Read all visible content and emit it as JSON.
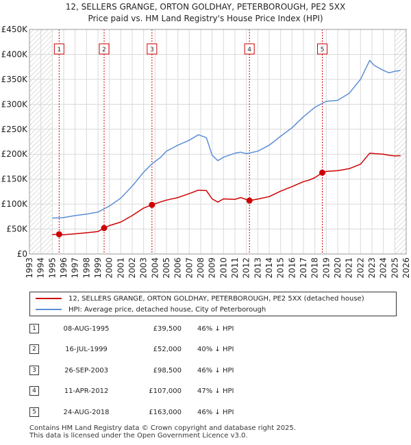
{
  "chart_data": {
    "type": "line",
    "title": "12, SELLERS GRANGE, ORTON GOLDHAY, PETERBOROUGH, PE2 5XX",
    "subtitle": "Price paid vs. HM Land Registry's House Price Index (HPI)",
    "xlabel": "",
    "ylabel": "",
    "xlim": [
      1993,
      2026
    ],
    "ylim": [
      0,
      450000
    ],
    "x_ticks": [
      1993,
      1994,
      1995,
      1996,
      1997,
      1998,
      1999,
      2000,
      2001,
      2002,
      2003,
      2004,
      2005,
      2006,
      2007,
      2008,
      2009,
      2010,
      2011,
      2012,
      2013,
      2014,
      2015,
      2016,
      2017,
      2018,
      2019,
      2020,
      2021,
      2022,
      2023,
      2024,
      2025,
      2026
    ],
    "y_ticks": [
      {
        "value": 0,
        "label": "£0"
      },
      {
        "value": 50000,
        "label": "£50K"
      },
      {
        "value": 100000,
        "label": "£100K"
      },
      {
        "value": 150000,
        "label": "£150K"
      },
      {
        "value": 200000,
        "label": "£200K"
      },
      {
        "value": 250000,
        "label": "£250K"
      },
      {
        "value": 300000,
        "label": "£300K"
      },
      {
        "value": 350000,
        "label": "£350K"
      },
      {
        "value": 400000,
        "label": "£400K"
      },
      {
        "value": 450000,
        "label": "£450K"
      }
    ],
    "hatched_ranges": [
      [
        1993,
        1995.0
      ],
      [
        2025.0,
        2026
      ]
    ],
    "grid": true,
    "series": [
      {
        "name": "12, SELLERS GRANGE, ORTON GOLDHAY, PETERBOROUGH, PE2 5XX (detached house)",
        "color": "#cc0000",
        "x": [
          1995.0,
          1995.6,
          1996.0,
          1997.0,
          1998.0,
          1999.0,
          1999.54,
          2000.0,
          2001.0,
          2002.0,
          2003.0,
          2003.73,
          2004.5,
          2005.0,
          2006.0,
          2007.0,
          2007.8,
          2008.5,
          2009.0,
          2009.5,
          2010.0,
          2011.0,
          2011.5,
          2012.27,
          2013.0,
          2014.0,
          2015.0,
          2016.0,
          2017.0,
          2017.5,
          2018.0,
          2018.65,
          2019.0,
          2020.0,
          2021.0,
          2022.0,
          2022.8,
          2023.3,
          2024.0,
          2024.5,
          2025.0,
          2025.5
        ],
        "values": [
          39000,
          39500,
          38500,
          40500,
          42500,
          45000,
          52000,
          57000,
          64000,
          77000,
          92000,
          98500,
          104500,
          108000,
          113000,
          121000,
          128000,
          127000,
          110500,
          104000,
          110500,
          109500,
          113000,
          107000,
          110000,
          115000,
          126000,
          135000,
          145000,
          148000,
          153000,
          163000,
          165500,
          167000,
          171000,
          180000,
          202000,
          201000,
          200000,
          198000,
          196500,
          197000
        ]
      },
      {
        "name": "HPI: Average price, detached house, City of Peterborough",
        "color": "#5b8ed6",
        "x": [
          1995.0,
          1995.5,
          1996.0,
          1997.0,
          1998.0,
          1999.0,
          2000.0,
          2001.0,
          2002.0,
          2003.0,
          2003.7,
          2004.5,
          2005.0,
          2006.0,
          2007.0,
          2007.8,
          2008.5,
          2009.0,
          2009.5,
          2010.0,
          2011.0,
          2011.5,
          2012.0,
          2013.0,
          2014.0,
          2015.0,
          2016.0,
          2017.0,
          2018.0,
          2019.0,
          2020.0,
          2021.0,
          2022.0,
          2022.8,
          2023.2,
          2024.0,
          2024.5,
          2025.0,
          2025.5
        ],
        "values": [
          72000,
          72500,
          73000,
          77000,
          80000,
          84000,
          96000,
          112000,
          136000,
          164000,
          180000,
          194000,
          206000,
          218000,
          228000,
          239000,
          233000,
          198000,
          187000,
          194000,
          202000,
          204000,
          201000,
          206000,
          218000,
          236000,
          253000,
          275000,
          294000,
          306000,
          308000,
          322000,
          350000,
          388000,
          378000,
          368000,
          363000,
          366000,
          368000
        ]
      }
    ],
    "transactions": [
      {
        "id": "1",
        "x": 1995.6,
        "price": 39500
      },
      {
        "id": "2",
        "x": 1999.54,
        "price": 52000
      },
      {
        "id": "3",
        "x": 2003.73,
        "price": 98500
      },
      {
        "id": "4",
        "x": 2012.27,
        "price": 107000
      },
      {
        "id": "5",
        "x": 2018.65,
        "price": 163000
      }
    ],
    "legend_position": "bottom"
  },
  "legend": {
    "property": "12, SELLERS GRANGE, ORTON GOLDHAY, PETERBOROUGH, PE2 5XX (detached house)",
    "hpi": "HPI: Average price, detached house, City of Peterborough"
  },
  "table": [
    {
      "num": "1",
      "date": "08-AUG-1995",
      "price": "£39,500",
      "hpi": "46% ↓ HPI"
    },
    {
      "num": "2",
      "date": "16-JUL-1999",
      "price": "£52,000",
      "hpi": "40% ↓ HPI"
    },
    {
      "num": "3",
      "date": "26-SEP-2003",
      "price": "£98,500",
      "hpi": "46% ↓ HPI"
    },
    {
      "num": "4",
      "date": "11-APR-2012",
      "price": "£107,000",
      "hpi": "47% ↓ HPI"
    },
    {
      "num": "5",
      "date": "24-AUG-2018",
      "price": "£163,000",
      "hpi": "46% ↓ HPI"
    }
  ],
  "footer": {
    "line1": "Contains HM Land Registry data © Crown copyright and database right 2025.",
    "line2": "This data is licensed under the Open Government Licence v3.0."
  }
}
